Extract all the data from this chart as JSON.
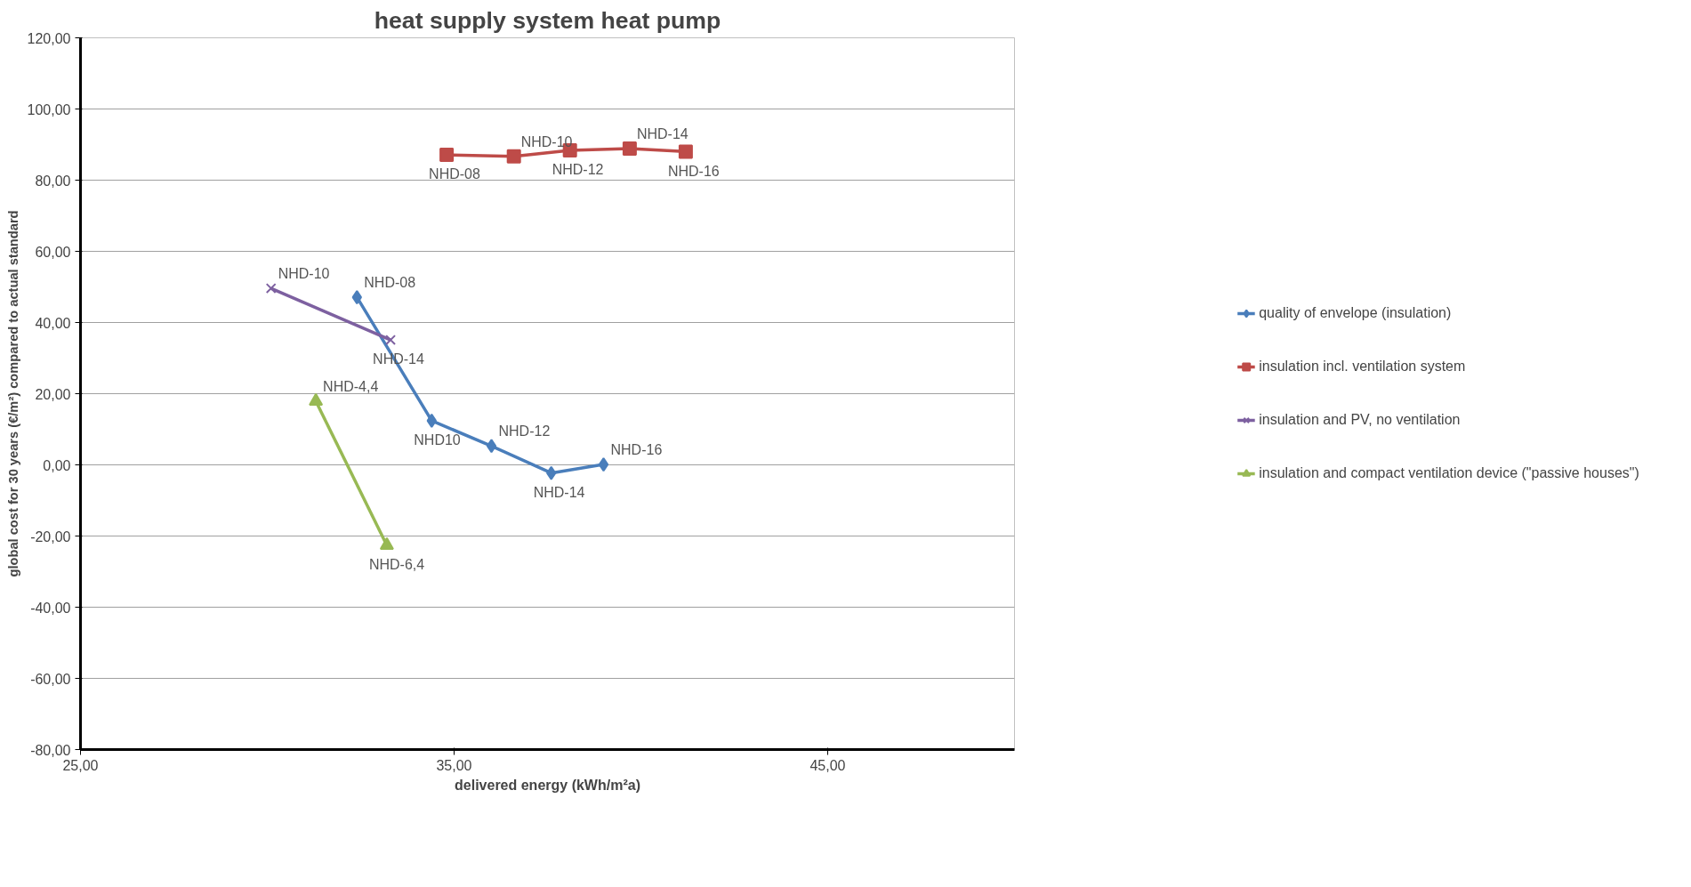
{
  "chart_data": {
    "type": "line",
    "title": "heat supply system heat pump",
    "xlabel": "delivered energy (kWh/m²a)",
    "ylabel": "global cost for 30 years (€/m²) compared to actual standard",
    "xlim": [
      25,
      50
    ],
    "xticks": [
      {
        "value": 25,
        "label": "25,00"
      },
      {
        "value": 35,
        "label": "35,00"
      },
      {
        "value": 45,
        "label": "45,00"
      }
    ],
    "ylim": [
      -80,
      120
    ],
    "yticks": [
      {
        "value": -80,
        "label": "-80,00"
      },
      {
        "value": -60,
        "label": "-60,00"
      },
      {
        "value": -40,
        "label": "-40,00"
      },
      {
        "value": -20,
        "label": "-20,00"
      },
      {
        "value": 0,
        "label": "0,00"
      },
      {
        "value": 20,
        "label": "20,00"
      },
      {
        "value": 40,
        "label": "40,00"
      },
      {
        "value": 60,
        "label": "60,00"
      },
      {
        "value": 80,
        "label": "80,00"
      },
      {
        "value": 100,
        "label": "100,00"
      },
      {
        "value": 120,
        "label": "120,00"
      }
    ],
    "grid": "y",
    "legend": "right",
    "series": [
      {
        "name": "quality of envelope (insulation)",
        "color": "#4a7ebb",
        "marker": "diamond",
        "x": [
          32.4,
          34.4,
          36.0,
          37.6,
          39.0
        ],
        "values": [
          47.1,
          12.4,
          5.3,
          -2.3,
          0.1
        ]
      },
      {
        "name": "insulation incl. ventilation system",
        "color": "#be4b48",
        "marker": "square",
        "x": [
          34.8,
          36.6,
          38.1,
          39.7,
          41.2
        ],
        "values": [
          87.1,
          86.7,
          88.4,
          88.9,
          88.0
        ]
      },
      {
        "name": "insulation and PV, no ventilation",
        "color": "#7d60a0",
        "marker": "cross",
        "x": [
          30.1,
          33.3
        ],
        "values": [
          49.6,
          35.1
        ]
      },
      {
        "name": "insulation and compact ventilation device (\"passive houses\")",
        "color": "#98b954",
        "marker": "triangle",
        "x": [
          31.3,
          33.2
        ],
        "values": [
          17.9,
          -22.6
        ]
      }
    ],
    "annotations": [
      {
        "text": "NHD-08",
        "x": 32.4,
        "y": 47.1
      },
      {
        "text": "NHD10",
        "x": 34.4,
        "y": 12.4
      },
      {
        "text": "NHD-12",
        "x": 36.0,
        "y": 5.3
      },
      {
        "text": "NHD-14",
        "x": 37.6,
        "y": -2.3
      },
      {
        "text": "NHD-16",
        "x": 39.0,
        "y": 0.1
      },
      {
        "text": "NHD-08",
        "x": 34.8,
        "y": 87.1
      },
      {
        "text": "NHD-10",
        "x": 36.6,
        "y": 86.7
      },
      {
        "text": "NHD-12",
        "x": 38.1,
        "y": 88.4
      },
      {
        "text": "NHD-14",
        "x": 39.7,
        "y": 88.9
      },
      {
        "text": "NHD-16",
        "x": 41.2,
        "y": 88.0
      },
      {
        "text": "NHD-10",
        "x": 30.1,
        "y": 49.6
      },
      {
        "text": "NHD-14",
        "x": 33.3,
        "y": 35.1
      },
      {
        "text": "NHD-4,4",
        "x": 31.3,
        "y": 17.9
      },
      {
        "text": "NHD-6,4",
        "x": 33.2,
        "y": -22.6
      }
    ]
  }
}
